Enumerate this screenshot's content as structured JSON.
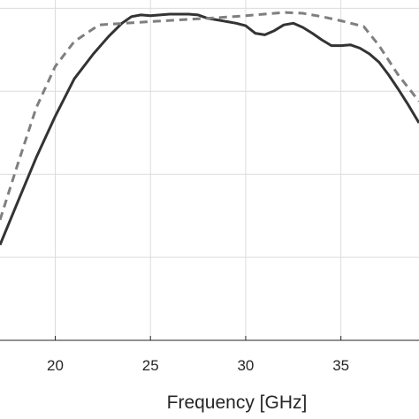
{
  "chart_data": {
    "type": "line",
    "xlabel": "Frequency [GHz]",
    "ylabel": "",
    "xlim": [
      17.1,
      39.1
    ],
    "x_ticks": [
      20,
      25,
      30,
      35
    ],
    "x_tick_labels": [
      "20",
      "25",
      "30",
      "35"
    ],
    "ylim": [
      0,
      4.1
    ],
    "y_gridlines": [
      1,
      2,
      3,
      4
    ],
    "grid": true,
    "series": [
      {
        "style": "solid",
        "color": "#333333",
        "x": [
          17.1,
          18.0,
          19.0,
          20.0,
          21.0,
          22.0,
          22.8,
          23.5,
          24.0,
          24.5,
          25.0,
          25.5,
          26.0,
          26.5,
          27.0,
          27.5,
          28.0,
          28.5,
          29.0,
          29.5,
          30.0,
          30.5,
          31.0,
          31.5,
          32.0,
          32.5,
          33.0,
          33.5,
          34.0,
          34.5,
          35.0,
          35.5,
          36.0,
          36.5,
          37.0,
          37.5,
          38.0,
          38.5,
          39.1
        ],
        "y": [
          1.15,
          1.65,
          2.2,
          2.7,
          3.15,
          3.45,
          3.66,
          3.82,
          3.9,
          3.92,
          3.91,
          3.92,
          3.93,
          3.93,
          3.93,
          3.92,
          3.88,
          3.86,
          3.84,
          3.82,
          3.79,
          3.7,
          3.68,
          3.73,
          3.8,
          3.82,
          3.77,
          3.7,
          3.62,
          3.55,
          3.55,
          3.56,
          3.52,
          3.45,
          3.35,
          3.2,
          3.03,
          2.85,
          2.62
        ]
      },
      {
        "style": "dashed",
        "color": "#7f7f7f",
        "x": [
          17.1,
          18.0,
          19.0,
          20.0,
          21.0,
          22.3,
          25.0,
          28.0,
          30.0,
          32.0,
          33.0,
          34.0,
          35.0,
          36.2,
          37.0,
          38.0,
          39.1
        ],
        "y": [
          1.45,
          2.1,
          2.8,
          3.3,
          3.6,
          3.8,
          3.84,
          3.88,
          3.91,
          3.95,
          3.94,
          3.9,
          3.85,
          3.78,
          3.55,
          3.2,
          2.88
        ]
      }
    ]
  }
}
